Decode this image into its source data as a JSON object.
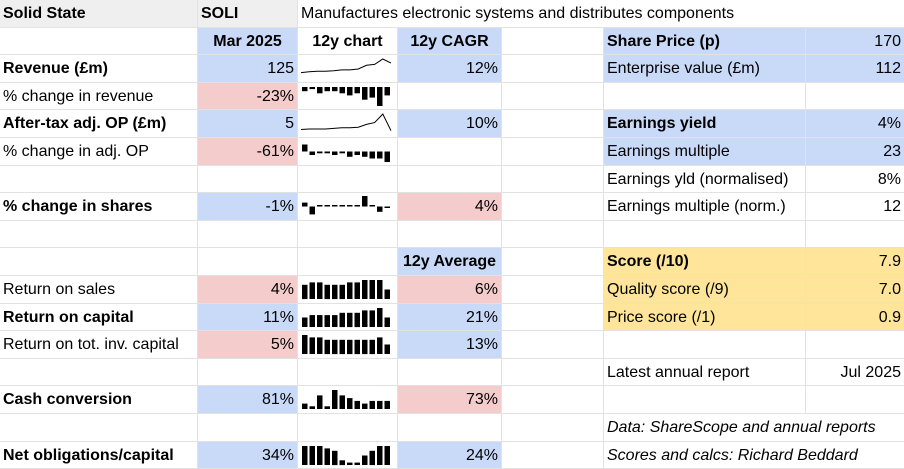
{
  "header": {
    "company": "Solid State",
    "ticker": "SOLI",
    "description": "Manufactures electronic systems and distributes components"
  },
  "columns": {
    "date": "Mar 2025",
    "chart": "12y chart",
    "cagr": "12y CAGR",
    "average": "12y Average"
  },
  "rows": {
    "revenue": {
      "label": "Revenue (£m)",
      "value": "125",
      "cagr": "12%"
    },
    "revenue_change": {
      "label": "% change in revenue",
      "value": "-23%"
    },
    "op": {
      "label": "After-tax adj. OP (£m)",
      "value": "5",
      "cagr": "10%"
    },
    "op_change": {
      "label": "% change in adj. OP",
      "value": "-61%"
    },
    "shares_change": {
      "label": "% change in shares",
      "value": "-1%",
      "cagr": "4%"
    },
    "ros": {
      "label": "Return on sales",
      "value": "4%",
      "avg": "6%"
    },
    "roc": {
      "label": "Return on capital",
      "value": "11%",
      "avg": "21%"
    },
    "rotic": {
      "label": "Return on tot. inv. capital",
      "value": "5%",
      "avg": "13%"
    },
    "cash": {
      "label": "Cash conversion",
      "value": "81%",
      "avg": "73%"
    },
    "netobl": {
      "label": "Net obligations/capital",
      "value": "34%",
      "avg": "24%"
    }
  },
  "right": {
    "share_price": {
      "label": "Share Price (p)",
      "value": "170"
    },
    "ev": {
      "label": "Enterprise value (£m)",
      "value": "112"
    },
    "ey": {
      "label": "Earnings yield",
      "value": "4%"
    },
    "em": {
      "label": "Earnings multiple",
      "value": "23"
    },
    "eyn": {
      "label": "Earnings yld (normalised)",
      "value": "8%"
    },
    "emn": {
      "label": "Earnings multiple (norm.)",
      "value": "12"
    },
    "score": {
      "label": "Score (/10)",
      "value": "7.9"
    },
    "quality": {
      "label": "Quality score (/9)",
      "value": "7.0"
    },
    "price": {
      "label": "Price score (/1)",
      "value": "0.9"
    },
    "report": {
      "label": "Latest annual report",
      "value": "Jul 2025"
    },
    "source": "Data: ShareScope and annual reports",
    "credit": "Scores and calcs: Richard Beddard"
  },
  "sparklines": {
    "revenue": {
      "type": "line",
      "values": [
        12,
        14,
        15,
        15,
        16,
        18,
        18,
        20,
        28,
        30,
        42,
        33
      ]
    },
    "op": {
      "type": "line",
      "values": [
        6,
        7,
        7,
        7,
        8,
        9,
        9,
        10,
        15,
        18,
        33,
        4
      ]
    },
    "revenue_change": {
      "type": "bar",
      "values": [
        -2,
        -1,
        -3,
        -2,
        -2,
        -3,
        -4,
        -3,
        -6,
        -5,
        -9,
        -4
      ]
    },
    "op_change": {
      "type": "bar",
      "values": [
        4,
        -2,
        -1,
        -1,
        -2,
        -1,
        -3,
        -2,
        -3,
        -4,
        -4,
        -6
      ]
    },
    "shares_change": {
      "type": "bar",
      "values": [
        3,
        -6,
        0.5,
        0.5,
        0.5,
        0.5,
        0.5,
        0.5,
        8,
        1,
        -4,
        -1
      ]
    },
    "ros": {
      "type": "bar",
      "values": [
        6,
        7,
        7,
        6,
        6,
        6,
        7,
        7,
        8,
        8,
        8,
        4
      ]
    },
    "roc": {
      "type": "bar",
      "values": [
        4,
        5,
        5,
        5,
        5,
        6,
        6,
        6,
        7,
        7,
        8,
        4
      ]
    },
    "rotic": {
      "type": "bar",
      "values": [
        8,
        7,
        7,
        6,
        6,
        6,
        6,
        6,
        6,
        6,
        7,
        4
      ]
    },
    "cash": {
      "type": "bar",
      "values": [
        2,
        1,
        5,
        1,
        7,
        5,
        4,
        3,
        2,
        3,
        3,
        3
      ]
    },
    "netobl": {
      "type": "bar",
      "values": [
        8,
        8,
        8,
        7,
        6,
        2,
        1,
        1,
        4,
        6,
        8,
        8
      ]
    }
  }
}
